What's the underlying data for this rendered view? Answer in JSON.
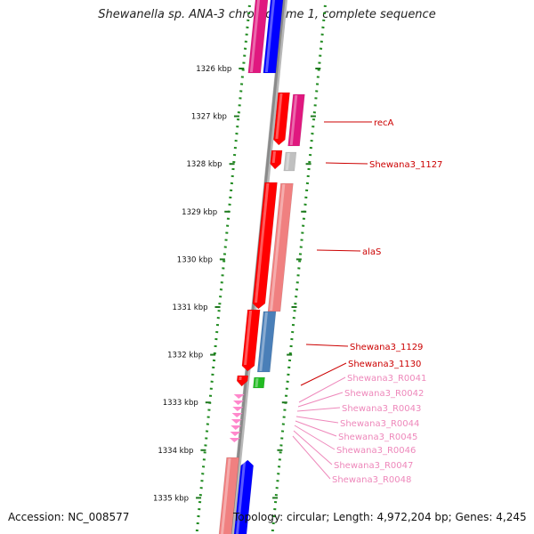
{
  "title": "Shewanella sp. ANA-3 chromosome 1, complete sequence",
  "footer": {
    "accession": "Accession: NC_008577",
    "topology": "Topology: circular; Length: 4,972,204 bp; Genes: 4,245"
  },
  "colors": {
    "backbone": "#8a8a8a",
    "ruler_dots": "#1f8a1f",
    "tick": "#1f7a1f",
    "gene_red": "#ff0000",
    "cds_salmon": "#f08080",
    "cds_magenta": "#e0187f",
    "cds_blue": "#0000ff",
    "cds_gray": "#c0c0c0",
    "cds_steelblue": "#4a7fb8",
    "cds_green": "#22bb22",
    "rna_pink": "#ff88cc",
    "label_red": "#cc0000",
    "label_pink": "#ee88bb"
  },
  "ruler_ticks": [
    "1326 kbp",
    "1327 kbp",
    "1328 kbp",
    "1329 kbp",
    "1330 kbp",
    "1331 kbp",
    "1332 kbp",
    "1333 kbp",
    "1334 kbp",
    "1335 kbp"
  ],
  "feature_labels": [
    {
      "text": "recA",
      "kind": "gene"
    },
    {
      "text": "Shewana3_1127",
      "kind": "gene"
    },
    {
      "text": "alaS",
      "kind": "gene"
    },
    {
      "text": "Shewana3_1129",
      "kind": "gene"
    },
    {
      "text": "Shewana3_1130",
      "kind": "gene"
    },
    {
      "text": "Shewana3_R0041",
      "kind": "rna"
    },
    {
      "text": "Shewana3_R0042",
      "kind": "rna"
    },
    {
      "text": "Shewana3_R0043",
      "kind": "rna"
    },
    {
      "text": "Shewana3_R0044",
      "kind": "rna"
    },
    {
      "text": "Shewana3_R0045",
      "kind": "rna"
    },
    {
      "text": "Shewana3_R0046",
      "kind": "rna"
    },
    {
      "text": "Shewana3_R0047",
      "kind": "rna"
    },
    {
      "text": "Shewana3_R0048",
      "kind": "rna"
    }
  ]
}
